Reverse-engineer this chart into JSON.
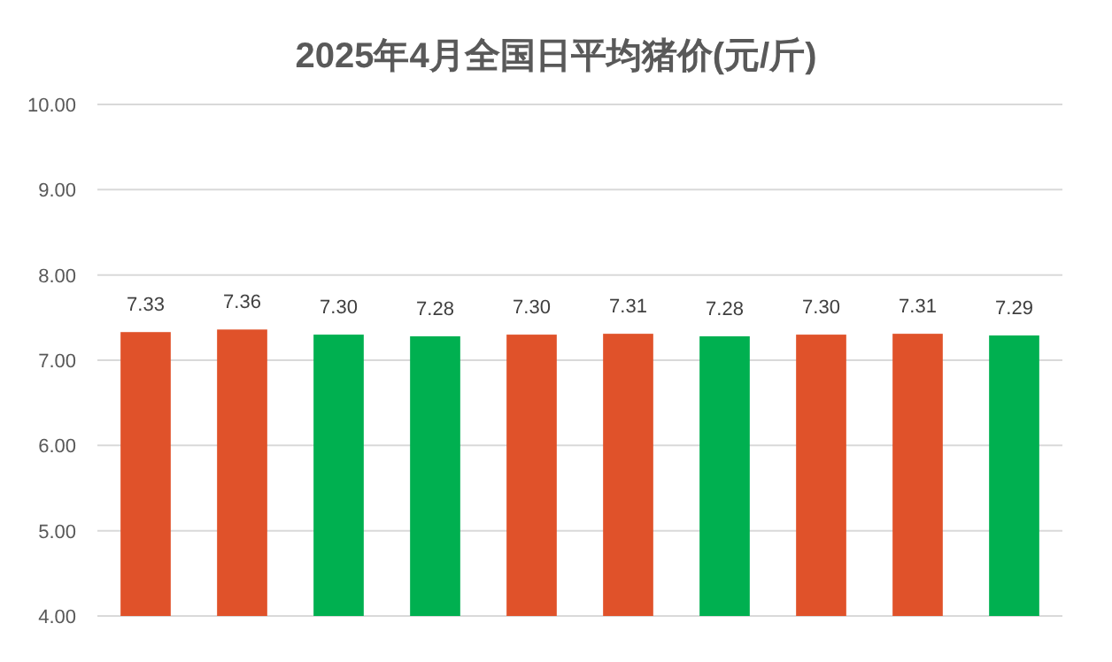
{
  "chart_data": {
    "type": "bar",
    "title": "2025年4月全国日平均猪价(元/斤)",
    "categories": [
      null,
      null,
      null,
      null,
      null,
      null,
      null,
      null,
      null,
      null
    ],
    "values": [
      7.33,
      7.36,
      7.3,
      7.28,
      7.3,
      7.31,
      7.28,
      7.3,
      7.31,
      7.29
    ],
    "colors": [
      "#e0522a",
      "#e0522a",
      "#00b050",
      "#00b050",
      "#e0522a",
      "#e0522a",
      "#00b050",
      "#e0522a",
      "#e0522a",
      "#00b050"
    ],
    "value_labels": [
      "7.33",
      "7.36",
      "7.30",
      "7.28",
      "7.30",
      "7.31",
      "7.28",
      "7.30",
      "7.31",
      "7.29"
    ],
    "ylim": [
      4,
      10
    ],
    "yticks": [
      {
        "value": 4,
        "label": "4.00"
      },
      {
        "value": 5,
        "label": "5.00"
      },
      {
        "value": 6,
        "label": "6.00"
      },
      {
        "value": 7,
        "label": "7.00"
      },
      {
        "value": 8,
        "label": "8.00"
      },
      {
        "value": 9,
        "label": "9.00"
      },
      {
        "value": 10,
        "label": "10.00"
      }
    ],
    "grid": "y"
  }
}
